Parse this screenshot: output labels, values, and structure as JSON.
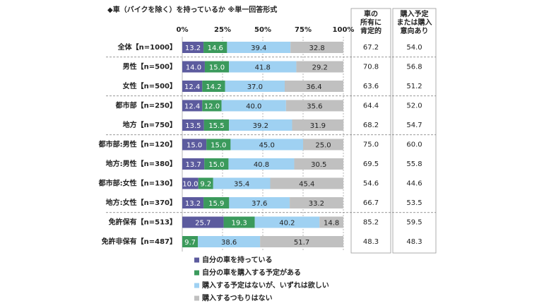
{
  "chart_data": {
    "type": "bar",
    "orientation": "horizontal",
    "stacked": true,
    "title": "◆車（バイクを除く）を持っているか ※単一回答形式",
    "categories": [
      "全体【n=1000】",
      "男性【n=500】",
      "女性【n=500】",
      "都市部【n=250】",
      "地方【n=750】",
      "都市部:男性【n=120】",
      "地方:男性【n=380】",
      "都市部:女性【n=130】",
      "地方:女性【n=370】",
      "免許保有【n=513】",
      "免許非保有【n=487】"
    ],
    "xlim": [
      0,
      100
    ],
    "xticks": [
      {
        "value": 0,
        "label": "0%"
      },
      {
        "value": 25,
        "label": "25%"
      },
      {
        "value": 50,
        "label": "50%"
      },
      {
        "value": 75,
        "label": "75%"
      },
      {
        "value": 100,
        "label": "100%"
      }
    ],
    "series": [
      {
        "name": "自分の車を持っている",
        "color": "#5c5b9e",
        "values": [
          13.2,
          14.0,
          12.4,
          12.4,
          13.5,
          15.0,
          13.7,
          10.0,
          13.2,
          25.7,
          0
        ],
        "value_labels": [
          "13.2",
          "14.0",
          "12.4",
          "12.4",
          "13.5",
          "15.0",
          "13.7",
          "10.0",
          "13.2",
          "25.7",
          null
        ]
      },
      {
        "name": "自分の車を購入する予定がある",
        "color": "#3b9a5c",
        "values": [
          14.6,
          15.0,
          14.2,
          12.0,
          15.5,
          15.0,
          15.0,
          9.2,
          15.9,
          19.3,
          9.7
        ],
        "value_labels": [
          "14.6",
          "15.0",
          "14.2",
          "12.0",
          "15.5",
          "15.0",
          "15.0",
          "9.2",
          "15.9",
          "19.3",
          "9.7"
        ]
      },
      {
        "name": "購入する予定はないが、いずれは欲しい",
        "color": "#9fd1f2",
        "values": [
          39.4,
          41.8,
          37.0,
          40.0,
          39.2,
          45.0,
          40.8,
          35.4,
          37.6,
          40.2,
          38.6
        ],
        "value_labels": [
          "39.4",
          "41.8",
          "37.0",
          "40.0",
          "39.2",
          "45.0",
          "40.8",
          "35.4",
          "37.6",
          "40.2",
          "38.6"
        ]
      },
      {
        "name": "購入するつもりはない",
        "color": "#c0c0c0",
        "values": [
          32.8,
          29.2,
          36.4,
          35.6,
          31.9,
          25.0,
          30.5,
          45.4,
          33.2,
          14.8,
          51.7
        ],
        "value_labels": [
          "32.8",
          "29.2",
          "36.4",
          "35.6",
          "31.9",
          "25.0",
          "30.5",
          "45.4",
          "33.2",
          "14.8",
          "51.7"
        ]
      }
    ],
    "side_columns": [
      {
        "header": [
          "車の",
          "所有に",
          "肯定的"
        ],
        "values": [
          "67.2",
          "70.8",
          "63.6",
          "64.4",
          "68.2",
          "75.0",
          "69.5",
          "54.6",
          "66.7",
          "85.2",
          "48.3"
        ]
      },
      {
        "header": [
          "購入予定",
          "または購入",
          "意向あり"
        ],
        "values": [
          "54.0",
          "56.8",
          "51.2",
          "52.0",
          "54.7",
          "60.0",
          "55.8",
          "44.6",
          "53.5",
          "59.5",
          "48.3"
        ]
      }
    ],
    "legend": "bottom"
  }
}
